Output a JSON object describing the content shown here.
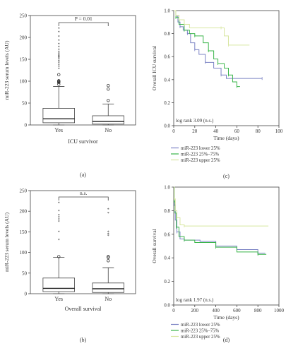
{
  "colors": {
    "axis": "#444444",
    "lower": "#7b83c4",
    "mid": "#3ab54a",
    "upper": "#d8e6a0"
  },
  "chart_data": [
    {
      "panel": "(a)",
      "type": "boxplot",
      "ylabel": "miR-223 serum levels (AU)",
      "xlabel": "ICU survivor",
      "ylim": [
        0,
        250
      ],
      "yticks": [
        "0",
        "50",
        "100",
        "150",
        "200",
        "250"
      ],
      "categories": [
        "Yes",
        "No"
      ],
      "boxes": [
        {
          "q1": 5,
          "median": 14,
          "q3": 38,
          "whisker_low": 0,
          "whisker_high": 88,
          "outliers": [
            93,
            97,
            99,
            100,
            101,
            115,
            128,
            133,
            137,
            142,
            146,
            150,
            153,
            155,
            157,
            160,
            163,
            167,
            172,
            178,
            185,
            193,
            202,
            212,
            220
          ]
        },
        {
          "q1": 2,
          "median": 8,
          "q3": 21,
          "whisker_low": 0,
          "whisker_high": 48,
          "outliers": [
            56,
            82,
            90
          ]
        }
      ],
      "annotation": "P = 0.01"
    },
    {
      "panel": "(c)",
      "type": "line",
      "ylabel": "Overall ICU survival",
      "xlabel": "Time (days)",
      "xlim": [
        0,
        100
      ],
      "ylim": [
        0,
        1.0
      ],
      "xticks": [
        "0",
        "20",
        "40",
        "60",
        "80",
        "100"
      ],
      "yticks": [
        "0.0",
        "0.2",
        "0.4",
        "0.6",
        "0.8",
        "1.0"
      ],
      "stat": "log rank 3.09 (n.s.)",
      "series": [
        {
          "name": "miR-223 lower 25%",
          "color_key": "lower",
          "points": [
            [
              0,
              1.0
            ],
            [
              2,
              0.95
            ],
            [
              4,
              0.9
            ],
            [
              6,
              0.86
            ],
            [
              9,
              0.83
            ],
            [
              13,
              0.8
            ],
            [
              16,
              0.72
            ],
            [
              20,
              0.66
            ],
            [
              24,
              0.62
            ],
            [
              30,
              0.55
            ],
            [
              38,
              0.5
            ],
            [
              45,
              0.44
            ],
            [
              50,
              0.41
            ],
            [
              84,
              0.41
            ]
          ]
        },
        {
          "name": "miR-223 25%–75%",
          "color_key": "mid",
          "points": [
            [
              0,
              1.0
            ],
            [
              2,
              0.94
            ],
            [
              5,
              0.88
            ],
            [
              10,
              0.83
            ],
            [
              15,
              0.8
            ],
            [
              20,
              0.78
            ],
            [
              28,
              0.72
            ],
            [
              33,
              0.65
            ],
            [
              38,
              0.58
            ],
            [
              42,
              0.54
            ],
            [
              48,
              0.5
            ],
            [
              52,
              0.44
            ],
            [
              56,
              0.38
            ],
            [
              60,
              0.34
            ],
            [
              63,
              0.34
            ]
          ]
        },
        {
          "name": "miR-223 upper 25%",
          "color_key": "upper",
          "points": [
            [
              0,
              1.0
            ],
            [
              2,
              0.96
            ],
            [
              5,
              0.92
            ],
            [
              10,
              0.88
            ],
            [
              15,
              0.85
            ],
            [
              45,
              0.85
            ],
            [
              48,
              0.78
            ],
            [
              52,
              0.7
            ],
            [
              72,
              0.7
            ]
          ]
        }
      ]
    },
    {
      "panel": "(b)",
      "type": "boxplot",
      "ylabel": "miR-223 serum levels (AU)",
      "xlabel": "Overall survival",
      "ylim": [
        0,
        250
      ],
      "yticks": [
        "0",
        "50",
        "100",
        "150",
        "200",
        "250"
      ],
      "categories": [
        "Yes",
        "No"
      ],
      "boxes": [
        {
          "q1": 5,
          "median": 13,
          "q3": 38,
          "whisker_low": 0,
          "whisker_high": 88,
          "outliers": [
            90,
            130,
            150,
            175,
            180,
            185,
            190,
            200,
            220
          ]
        },
        {
          "q1": 3,
          "median": 12,
          "q3": 26,
          "whisker_low": 0,
          "whisker_high": 63,
          "outliers": [
            80,
            88,
            90,
            140,
            145,
            150,
            195,
            205
          ]
        }
      ],
      "annotation": "n.s."
    },
    {
      "panel": "(d)",
      "type": "line",
      "ylabel": "Overall survival",
      "xlabel": "Time (days)",
      "xlim": [
        0,
        1000
      ],
      "ylim": [
        0,
        1.0
      ],
      "xticks": [
        "0",
        "200",
        "400",
        "600",
        "800",
        "1000"
      ],
      "yticks": [
        "0.0",
        "0.2",
        "0.4",
        "0.6",
        "0.8",
        "1.0"
      ],
      "stat": "log rank 1.97 (n.s.)",
      "series": [
        {
          "name": "miR-223 lower 25%",
          "color_key": "lower",
          "points": [
            [
              0,
              1.0
            ],
            [
              5,
              0.85
            ],
            [
              15,
              0.72
            ],
            [
              30,
              0.62
            ],
            [
              60,
              0.56
            ],
            [
              100,
              0.55
            ],
            [
              250,
              0.54
            ],
            [
              400,
              0.5
            ],
            [
              600,
              0.47
            ],
            [
              800,
              0.44
            ],
            [
              870,
              0.44
            ]
          ]
        },
        {
          "name": "miR-223 25%–75%",
          "color_key": "mid",
          "points": [
            [
              0,
              1.0
            ],
            [
              5,
              0.88
            ],
            [
              12,
              0.78
            ],
            [
              25,
              0.66
            ],
            [
              50,
              0.58
            ],
            [
              100,
              0.55
            ],
            [
              200,
              0.53
            ],
            [
              400,
              0.49
            ],
            [
              600,
              0.45
            ],
            [
              800,
              0.43
            ],
            [
              880,
              0.43
            ]
          ]
        },
        {
          "name": "miR-223 upper 25%",
          "color_key": "upper",
          "points": [
            [
              0,
              1.0
            ],
            [
              5,
              0.9
            ],
            [
              15,
              0.8
            ],
            [
              30,
              0.74
            ],
            [
              60,
              0.68
            ],
            [
              100,
              0.67
            ],
            [
              900,
              0.67
            ]
          ]
        }
      ]
    }
  ]
}
